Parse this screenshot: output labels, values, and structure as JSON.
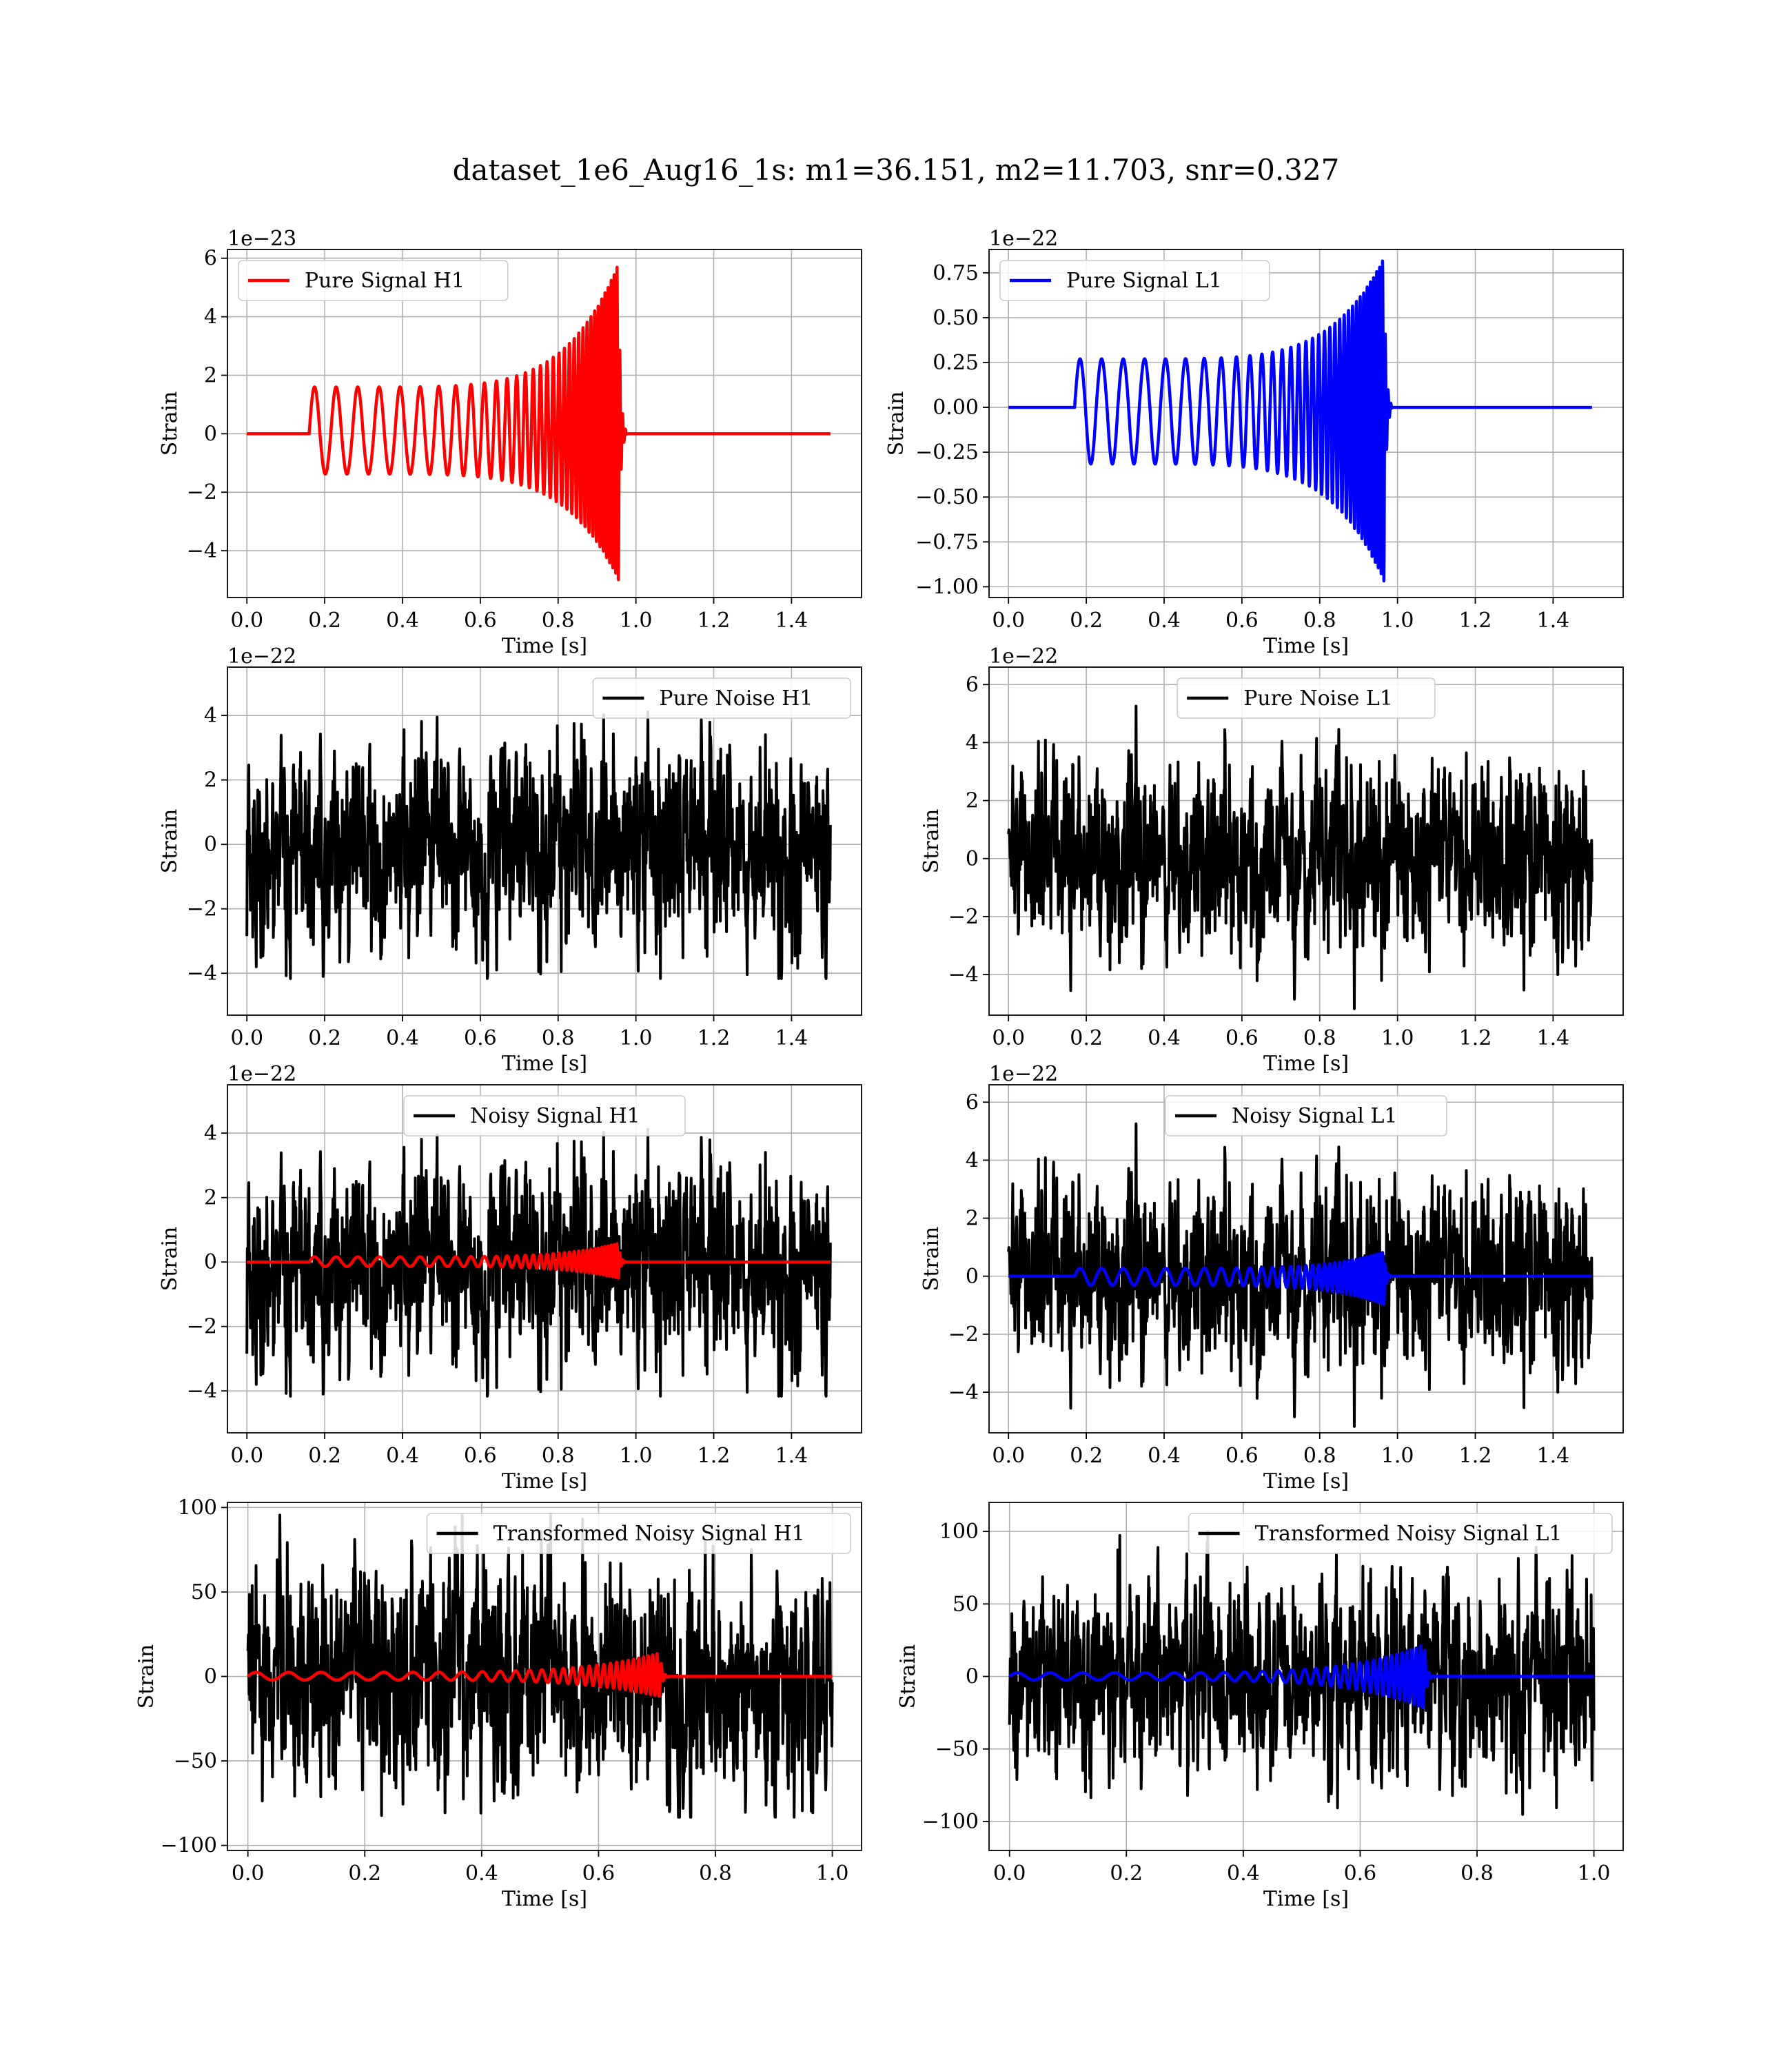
{
  "figure": {
    "title": "dataset_1e6_Aug16_1s: m1=36.151, m2=11.703, snr=0.327"
  },
  "colors": {
    "h1_signal": "#ff0000",
    "l1_signal": "#0000ff",
    "noise": "#000000",
    "grid": "#b0b0b0"
  },
  "chart_data": [
    {
      "type": "line",
      "name": "pure-signal-h1",
      "xlabel": "Time [s]",
      "ylabel": "Strain",
      "offset_text": "1e−23",
      "xlim": [
        -0.05,
        1.58
      ],
      "ylim": [
        -5.6,
        6.3
      ],
      "xticks": [
        0.0,
        0.2,
        0.4,
        0.6,
        0.8,
        1.0,
        1.2,
        1.4
      ],
      "xtick_labels": [
        "0.0",
        "0.2",
        "0.4",
        "0.6",
        "0.8",
        "1.0",
        "1.2",
        "1.4"
      ],
      "yticks": [
        -4,
        -2,
        0,
        2,
        4,
        6
      ],
      "ytick_labels": [
        "−4",
        "−2",
        "0",
        "2",
        "4",
        "6"
      ],
      "legend_position": "upper-left",
      "grid": true,
      "series": [
        {
          "name": "Pure Signal H1",
          "color": "#ff0000",
          "kind": "chirp",
          "x_range": [
            0,
            1.5
          ],
          "t_start": 0.16,
          "t_merge": 0.955,
          "t_end": 0.975,
          "base_amp": 1.6,
          "peak_amp": 5.8,
          "neg_peak": -5.0,
          "noise_amp": 0,
          "seed": 11
        }
      ]
    },
    {
      "type": "line",
      "name": "pure-signal-l1",
      "xlabel": "Time [s]",
      "ylabel": "Strain",
      "offset_text": "1e−22",
      "xlim": [
        -0.05,
        1.58
      ],
      "ylim": [
        -1.06,
        0.88
      ],
      "xticks": [
        0.0,
        0.2,
        0.4,
        0.6,
        0.8,
        1.0,
        1.2,
        1.4
      ],
      "xtick_labels": [
        "0.0",
        "0.2",
        "0.4",
        "0.6",
        "0.8",
        "1.0",
        "1.2",
        "1.4"
      ],
      "yticks": [
        -1.0,
        -0.75,
        -0.5,
        -0.25,
        0.0,
        0.25,
        0.5,
        0.75
      ],
      "ytick_labels": [
        "−1.00",
        "−0.75",
        "−0.50",
        "−0.25",
        "0.00",
        "0.25",
        "0.50",
        "0.75"
      ],
      "legend_position": "upper-left",
      "grid": true,
      "series": [
        {
          "name": "Pure Signal L1",
          "color": "#0000ff",
          "kind": "chirp",
          "x_range": [
            0,
            1.5
          ],
          "t_start": 0.17,
          "t_merge": 0.965,
          "t_end": 0.985,
          "base_amp": 0.27,
          "peak_amp": 0.83,
          "neg_peak": -0.97,
          "noise_amp": 0,
          "seed": 12
        }
      ]
    },
    {
      "type": "line",
      "name": "pure-noise-h1",
      "xlabel": "Time [s]",
      "ylabel": "Strain",
      "offset_text": "1e−22",
      "xlim": [
        -0.05,
        1.58
      ],
      "ylim": [
        -5.3,
        5.5
      ],
      "xticks": [
        0.0,
        0.2,
        0.4,
        0.6,
        0.8,
        1.0,
        1.2,
        1.4
      ],
      "xtick_labels": [
        "0.0",
        "0.2",
        "0.4",
        "0.6",
        "0.8",
        "1.0",
        "1.2",
        "1.4"
      ],
      "yticks": [
        -4,
        -2,
        0,
        2,
        4
      ],
      "ytick_labels": [
        "−4",
        "−2",
        "0",
        "2",
        "4"
      ],
      "legend_position": "upper-right",
      "grid": true,
      "series": [
        {
          "name": "Pure Noise H1",
          "color": "#000000",
          "kind": "noise",
          "x_range": [
            0,
            1.5
          ],
          "noise_amp": 1.45,
          "clip": 4.9,
          "seed": 21
        }
      ]
    },
    {
      "type": "line",
      "name": "pure-noise-l1",
      "xlabel": "Time [s]",
      "ylabel": "Strain",
      "offset_text": "1e−22",
      "xlim": [
        -0.05,
        1.58
      ],
      "ylim": [
        -5.4,
        6.6
      ],
      "xticks": [
        0.0,
        0.2,
        0.4,
        0.6,
        0.8,
        1.0,
        1.2,
        1.4
      ],
      "xtick_labels": [
        "0.0",
        "0.2",
        "0.4",
        "0.6",
        "0.8",
        "1.0",
        "1.2",
        "1.4"
      ],
      "yticks": [
        -4,
        -2,
        0,
        2,
        4,
        6
      ],
      "ytick_labels": [
        "−4",
        "−2",
        "0",
        "2",
        "4",
        "6"
      ],
      "legend_position": "upper-center",
      "grid": true,
      "series": [
        {
          "name": "Pure Noise L1",
          "color": "#000000",
          "kind": "noise",
          "x_range": [
            0,
            1.5
          ],
          "noise_amp": 1.45,
          "clip": 6.1,
          "seed": 22
        }
      ]
    },
    {
      "type": "line",
      "name": "noisy-signal-h1",
      "xlabel": "Time [s]",
      "ylabel": "Strain",
      "offset_text": "1e−22",
      "xlim": [
        -0.05,
        1.58
      ],
      "ylim": [
        -5.3,
        5.5
      ],
      "xticks": [
        0.0,
        0.2,
        0.4,
        0.6,
        0.8,
        1.0,
        1.2,
        1.4
      ],
      "xtick_labels": [
        "0.0",
        "0.2",
        "0.4",
        "0.6",
        "0.8",
        "1.0",
        "1.2",
        "1.4"
      ],
      "yticks": [
        -4,
        -2,
        0,
        2,
        4
      ],
      "ytick_labels": [
        "−4",
        "−2",
        "0",
        "2",
        "4"
      ],
      "legend_position": "upper-center",
      "grid": true,
      "series": [
        {
          "name": "Noisy Signal H1",
          "color": "#000000",
          "kind": "noise",
          "x_range": [
            0,
            1.5
          ],
          "noise_amp": 1.45,
          "clip": 4.9,
          "seed": 21
        },
        {
          "name": "",
          "color": "#ff0000",
          "kind": "chirp",
          "x_range": [
            0,
            1.5
          ],
          "t_start": 0.16,
          "t_merge": 0.955,
          "t_end": 0.975,
          "base_amp": 0.16,
          "peak_amp": 0.58,
          "neg_peak": -0.5,
          "noise_amp": 0,
          "seed": 11
        }
      ]
    },
    {
      "type": "line",
      "name": "noisy-signal-l1",
      "xlabel": "Time [s]",
      "ylabel": "Strain",
      "offset_text": "1e−22",
      "xlim": [
        -0.05,
        1.58
      ],
      "ylim": [
        -5.4,
        6.6
      ],
      "xticks": [
        0.0,
        0.2,
        0.4,
        0.6,
        0.8,
        1.0,
        1.2,
        1.4
      ],
      "xtick_labels": [
        "0.0",
        "0.2",
        "0.4",
        "0.6",
        "0.8",
        "1.0",
        "1.2",
        "1.4"
      ],
      "yticks": [
        -4,
        -2,
        0,
        2,
        4,
        6
      ],
      "ytick_labels": [
        "−4",
        "−2",
        "0",
        "2",
        "4",
        "6"
      ],
      "legend_position": "upper-center",
      "grid": true,
      "series": [
        {
          "name": "Noisy Signal L1",
          "color": "#000000",
          "kind": "noise",
          "x_range": [
            0,
            1.5
          ],
          "noise_amp": 1.45,
          "clip": 6.1,
          "seed": 22
        },
        {
          "name": "",
          "color": "#0000ff",
          "kind": "chirp",
          "x_range": [
            0,
            1.5
          ],
          "t_start": 0.17,
          "t_merge": 0.965,
          "t_end": 0.985,
          "base_amp": 0.27,
          "peak_amp": 0.83,
          "neg_peak": -0.97,
          "noise_amp": 0,
          "seed": 12
        }
      ]
    },
    {
      "type": "line",
      "name": "transformed-noisy-signal-h1",
      "xlabel": "Time [s]",
      "ylabel": "Strain",
      "offset_text": "",
      "xlim": [
        -0.035,
        1.05
      ],
      "ylim": [
        -103,
        103
      ],
      "xticks": [
        0.0,
        0.2,
        0.4,
        0.6,
        0.8,
        1.0
      ],
      "xtick_labels": [
        "0.0",
        "0.2",
        "0.4",
        "0.6",
        "0.8",
        "1.0"
      ],
      "yticks": [
        -100,
        -50,
        0,
        50,
        100
      ],
      "ytick_labels": [
        "−100",
        "−50",
        "0",
        "50",
        "100"
      ],
      "legend_position": "upper-right",
      "grid": true,
      "series": [
        {
          "name": "Transformed Noisy Signal H1",
          "color": "#000000",
          "kind": "noise",
          "x_range": [
            0,
            1.0
          ],
          "noise_amp": 30,
          "clip": 98,
          "seed": 31
        },
        {
          "name": "",
          "color": "#ff0000",
          "kind": "chirp",
          "x_range": [
            0,
            1.0
          ],
          "t_start": 0.0,
          "t_merge": 0.705,
          "t_end": 0.72,
          "base_amp": 2.5,
          "peak_amp": 14,
          "neg_peak": -12,
          "noise_amp": 0,
          "seed": 13
        }
      ]
    },
    {
      "type": "line",
      "name": "transformed-noisy-signal-l1",
      "xlabel": "Time [s]",
      "ylabel": "Strain",
      "offset_text": "",
      "xlim": [
        -0.035,
        1.05
      ],
      "ylim": [
        -120,
        120
      ],
      "xticks": [
        0.0,
        0.2,
        0.4,
        0.6,
        0.8,
        1.0
      ],
      "xtick_labels": [
        "0.0",
        "0.2",
        "0.4",
        "0.6",
        "0.8",
        "1.0"
      ],
      "yticks": [
        -100,
        -50,
        0,
        50,
        100
      ],
      "ytick_labels": [
        "−100",
        "−50",
        "0",
        "50",
        "100"
      ],
      "legend_position": "upper-right",
      "grid": true,
      "series": [
        {
          "name": "Transformed Noisy Signal L1",
          "color": "#000000",
          "kind": "noise",
          "x_range": [
            0,
            1.0
          ],
          "noise_amp": 30,
          "clip": 112,
          "seed": 32
        },
        {
          "name": "",
          "color": "#0000ff",
          "kind": "chirp",
          "x_range": [
            0,
            1.0
          ],
          "t_start": 0.0,
          "t_merge": 0.71,
          "t_end": 0.725,
          "base_amp": 2.5,
          "peak_amp": 22,
          "neg_peak": -22,
          "noise_amp": 0,
          "seed": 14
        }
      ]
    }
  ]
}
